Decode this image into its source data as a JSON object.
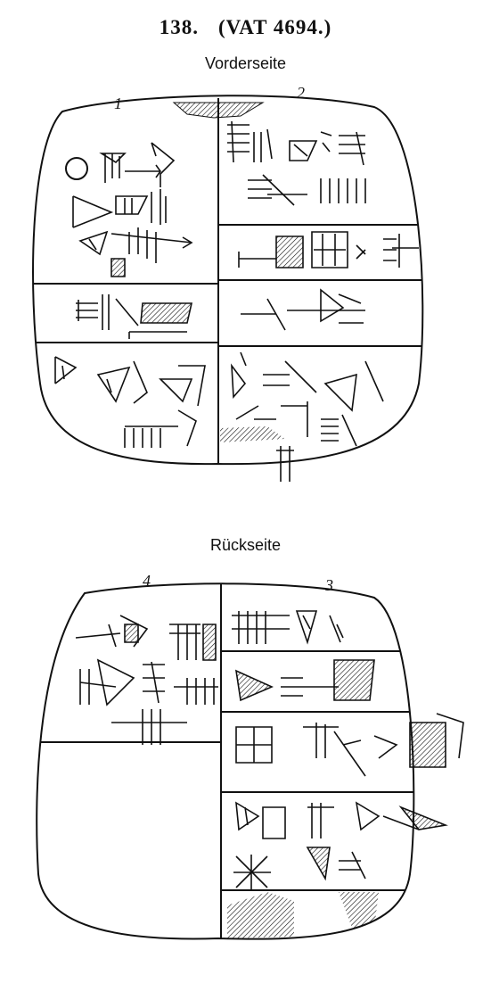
{
  "header": {
    "number": "138.",
    "museum_id": "(VAT 4694.)"
  },
  "obverse": {
    "label": "Vorderseite",
    "column_numbers": [
      "1",
      "2"
    ]
  },
  "reverse": {
    "label": "Rückseite",
    "column_numbers": [
      "4",
      "3"
    ]
  },
  "colors": {
    "ink": "#111111",
    "paper": "#ffffff"
  }
}
